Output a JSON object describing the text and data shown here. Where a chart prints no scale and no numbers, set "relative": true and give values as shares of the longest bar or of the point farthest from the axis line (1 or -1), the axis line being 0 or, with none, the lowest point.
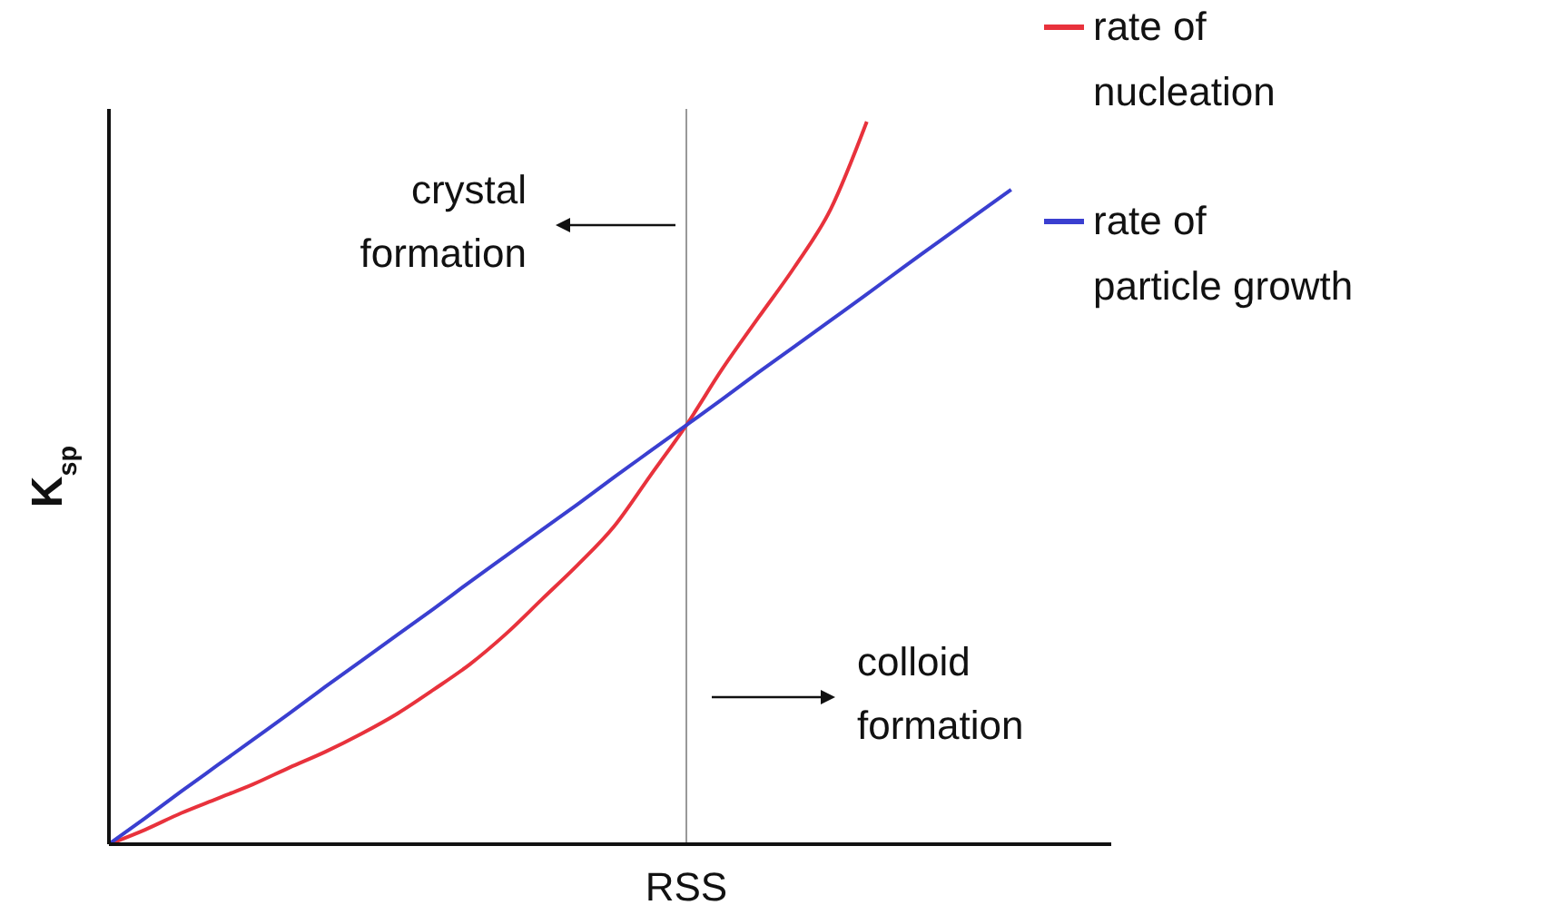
{
  "chart_data": {
    "type": "line",
    "relative": true,
    "xlabel": "RSS",
    "ylabel": "K$_{sp}$",
    "legend": "top right",
    "marker": "none",
    "categories": [
      null,
      null,
      null,
      null,
      null,
      null,
      null,
      null,
      null,
      null,
      null,
      null,
      null,
      null,
      null,
      null,
      null,
      null,
      null,
      null,
      null,
      null,
      null,
      null,
      null,
      null,
      null,
      null
    ],
    "series": [
      {
        "name": "rate of nucleation",
        "color": "#e8323c",
        "values": [
          0,
          0.02,
          0.043,
          0.063,
          0.083,
          0.106,
          0.128,
          0.153,
          0.181,
          0.214,
          0.249,
          0.291,
          0.339,
          0.387,
          0.44,
          0.51,
          0.58,
          0.658,
          0.729,
          0.799,
          0.879,
          1,
          null,
          null,
          null,
          null,
          null,
          null
        ]
      },
      {
        "name": "rate of particle growth",
        "color": "#3a3fd0",
        "values": [
          0,
          0.036,
          0.073,
          0.109,
          0.145,
          0.181,
          0.218,
          0.254,
          0.29,
          0.326,
          0.363,
          0.399,
          0.435,
          0.471,
          0.508,
          0.544,
          0.58,
          0.616,
          0.653,
          0.689,
          0.725,
          0.761,
          0.798,
          0.834,
          0.87,
          0.906,
          null,
          null
        ]
      }
    ],
    "annotations": [
      "crystal formation",
      "colloid formation"
    ]
  }
}
